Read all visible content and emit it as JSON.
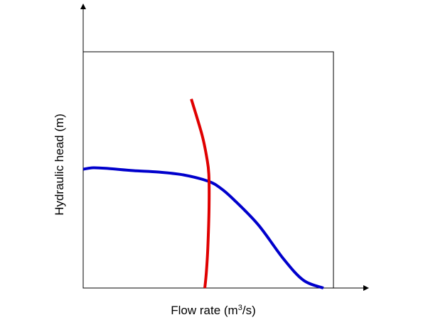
{
  "chart_data": {
    "type": "line",
    "xlabel": "Flow rate (m",
    "xlabel_superscript": "3",
    "xlabel_suffix": "/s)",
    "ylabel": "Hydraulic head (m)",
    "xlim": [
      0,
      100
    ],
    "ylim": [
      0,
      100
    ],
    "grid": false,
    "series": [
      {
        "color": "#0000cc",
        "x": [
          0,
          4,
          10,
          20,
          30,
          40,
          50,
          55,
          60,
          70,
          80,
          88,
          96
        ],
        "y": [
          50.3,
          50.9,
          50.6,
          49.7,
          49.1,
          47.9,
          45.2,
          42.2,
          37.6,
          26.7,
          12.4,
          3.3,
          0
        ]
      },
      {
        "color": "#e00000",
        "x": [
          43.2,
          47.5,
          49.4,
          50.2,
          50.3,
          49.8,
          49.2,
          48.6
        ],
        "y": [
          80,
          64.8,
          55.1,
          48.2,
          34.6,
          16.9,
          6.4,
          0
        ]
      }
    ]
  }
}
